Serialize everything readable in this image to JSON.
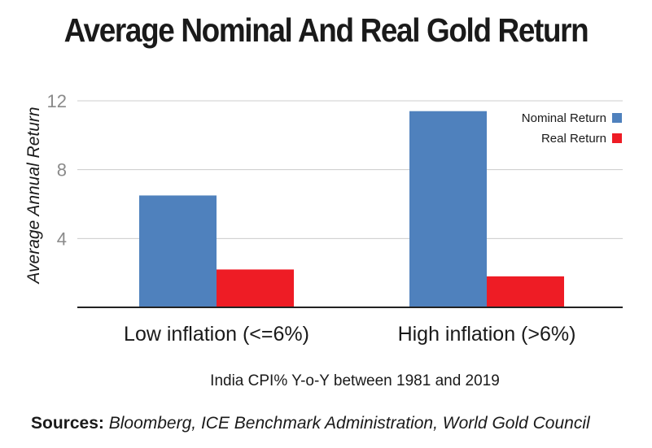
{
  "title": "Average Nominal And Real Gold Return",
  "sources_label": "Sources:",
  "sources_text": "Bloomberg, ICE Benchmark Administration, World Gold Council",
  "colors": {
    "nominal": "#4f81bd",
    "real": "#ee1c25",
    "grid": "#cccccc",
    "axis": "#222222"
  },
  "chart_data": {
    "type": "bar",
    "title": "Average Nominal And Real Gold Return",
    "xlabel": "India CPI% Y-o-Y between 1981 and 2019",
    "ylabel": "Average Annual Return",
    "categories": [
      "Low inflation (<=6%)",
      "High inflation (>6%)"
    ],
    "series": [
      {
        "name": "Nominal Return",
        "values": [
          6.5,
          11.4
        ],
        "color": "#4f81bd"
      },
      {
        "name": "Real Return",
        "values": [
          2.2,
          1.8
        ],
        "color": "#ee1c25"
      }
    ],
    "yticks": [
      4,
      8,
      12
    ],
    "ylim": [
      0,
      12
    ],
    "grid": true,
    "legend_position": "top-right"
  }
}
